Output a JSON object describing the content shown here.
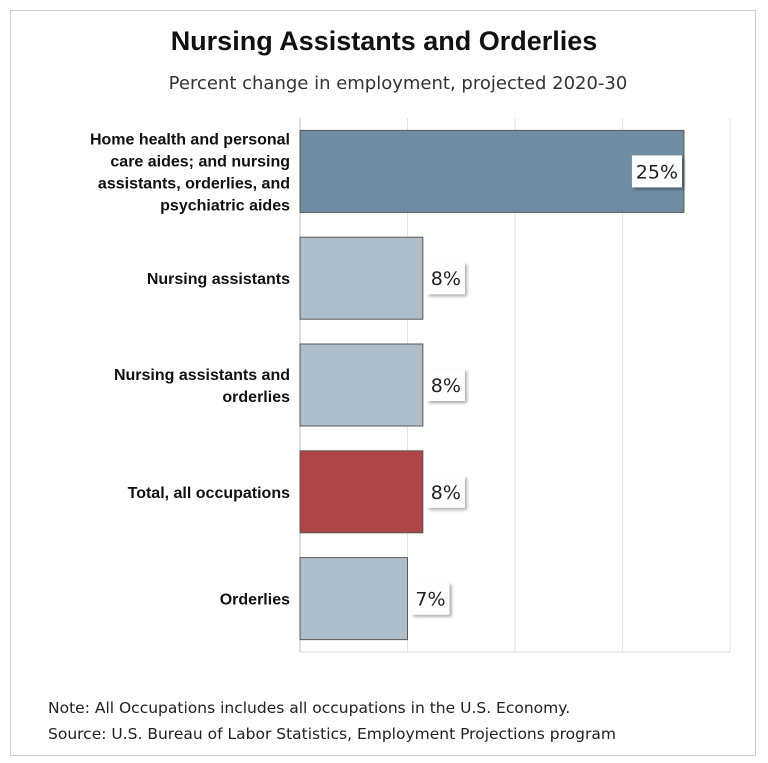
{
  "chart_data": {
    "type": "bar",
    "orientation": "horizontal",
    "title": "Nursing Assistants and Orderlies",
    "subtitle": "Percent change in employment, projected 2020-30",
    "categories": [
      "Home health and personal care aides; and nursing assistants, orderlies, and psychiatric aides",
      "Nursing assistants",
      "Nursing assistants and orderlies",
      "Total, all occupations",
      "Orderlies"
    ],
    "category_lines": [
      [
        "Home health and personal",
        "care aides; and nursing",
        "assistants, orderlies, and",
        "psychiatric aides"
      ],
      [
        "Nursing assistants"
      ],
      [
        "Nursing assistants and",
        "orderlies"
      ],
      [
        "Total, all occupations"
      ],
      [
        "Orderlies"
      ]
    ],
    "values": [
      25,
      8,
      8,
      8,
      7
    ],
    "data_labels": [
      "25%",
      "8%",
      "8%",
      "8%",
      "7%"
    ],
    "bar_colors": [
      "#6f8ca2",
      "#aebfcb",
      "#aebfcb",
      "#b04447",
      "#aebfcb"
    ],
    "xlim": [
      0,
      28
    ],
    "gridlines": [
      7,
      14,
      21,
      28
    ],
    "grid": true,
    "xlabel": "",
    "ylabel": ""
  },
  "notes": {
    "note": "Note: All Occupations includes all occupations in the U.S. Economy.",
    "source": "Source: U.S. Bureau of Labor Statistics, Employment Projections program"
  }
}
